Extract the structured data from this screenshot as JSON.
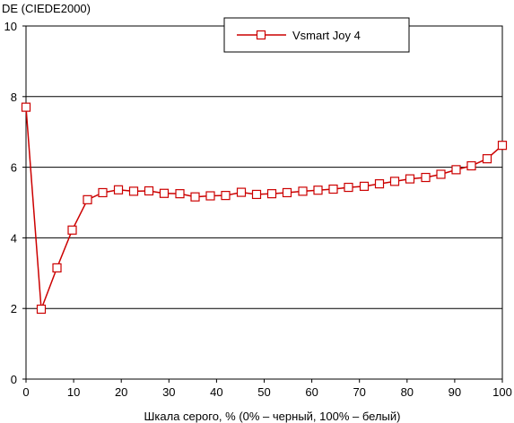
{
  "chart_data": {
    "type": "line",
    "title": "",
    "ylabel": "DE (CIEDE2000)",
    "xlabel": "Шкала серого, % (0% – черный, 100% – белый)",
    "xlim": [
      0,
      100
    ],
    "ylim": [
      0,
      10
    ],
    "x_ticks": [
      0,
      10,
      20,
      30,
      40,
      50,
      60,
      70,
      80,
      90,
      100
    ],
    "y_ticks": [
      0,
      2,
      4,
      6,
      8,
      10
    ],
    "grid": "horizontal",
    "legend_position": "top-center",
    "series": [
      {
        "name": "Vsmart Joy 4",
        "color": "#cc0000",
        "marker": "square-open",
        "x": [
          0,
          3.2,
          6.5,
          9.7,
          12.9,
          16.1,
          19.4,
          22.6,
          25.8,
          29.0,
          32.3,
          35.5,
          38.7,
          41.9,
          45.2,
          48.4,
          51.6,
          54.8,
          58.1,
          61.3,
          64.5,
          67.7,
          71.0,
          74.2,
          77.4,
          80.6,
          83.9,
          87.1,
          90.3,
          93.5,
          96.8,
          100
        ],
        "y": [
          7.7,
          1.98,
          3.15,
          4.22,
          5.08,
          5.28,
          5.36,
          5.32,
          5.33,
          5.26,
          5.25,
          5.16,
          5.19,
          5.2,
          5.29,
          5.23,
          5.25,
          5.28,
          5.32,
          5.35,
          5.38,
          5.43,
          5.46,
          5.53,
          5.6,
          5.67,
          5.71,
          5.8,
          5.93,
          6.04,
          6.24,
          6.62
        ]
      }
    ]
  }
}
